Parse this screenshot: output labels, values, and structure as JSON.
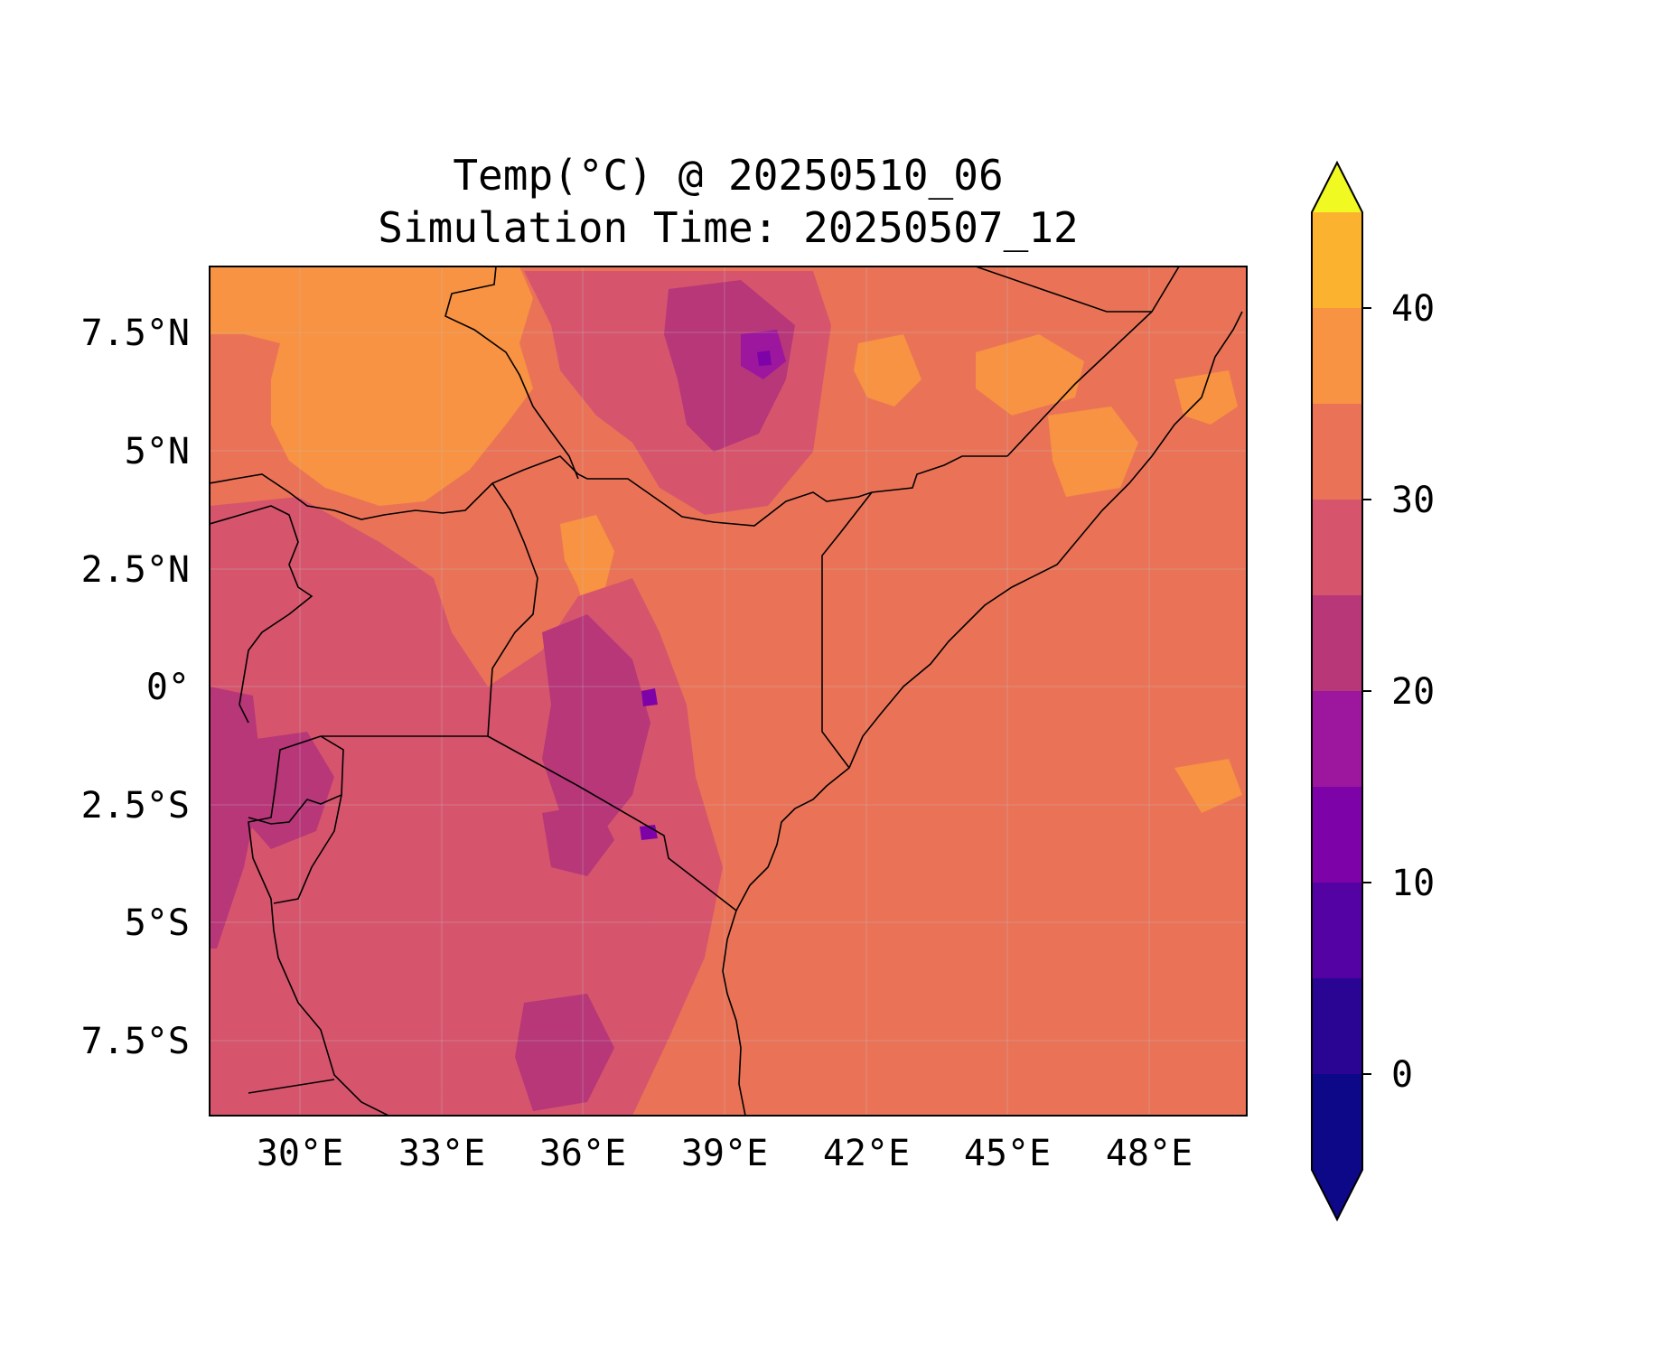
{
  "title_line1": "Temp(°C) @ 20250510_06",
  "title_line2": "Simulation Time: 20250507_12",
  "lon_ticks": [
    "30°E",
    "33°E",
    "36°E",
    "39°E",
    "42°E",
    "45°E",
    "48°E"
  ],
  "lat_ticks": [
    "7.5°N",
    "5°N",
    "2.5°N",
    "0°",
    "2.5°S",
    "5°S",
    "7.5°S"
  ],
  "colorbar": {
    "tick_labels": [
      "0",
      "10",
      "20",
      "30",
      "40"
    ],
    "levels": [
      -5,
      0,
      5,
      10,
      15,
      20,
      25,
      30,
      35,
      40,
      45
    ],
    "colors": [
      "#0d0887",
      "#2a0593",
      "#5402a3",
      "#7d03a8",
      "#9c179e",
      "#b73779",
      "#d6556d",
      "#ea7357",
      "#f79342",
      "#fbb32f",
      "#f0f921"
    ],
    "extend": "both"
  },
  "chart_data": {
    "type": "heatmap",
    "title": "Temp(°C) @ 20250510_06\nSimulation Time: 20250507_12",
    "xlim": [
      28,
      50
    ],
    "ylim": [
      -9,
      9
    ],
    "x_ticks": [
      30,
      33,
      36,
      39,
      42,
      45,
      48
    ],
    "y_ticks": [
      7.5,
      5,
      2.5,
      0,
      -2.5,
      -5,
      -7.5
    ],
    "colorbar_range": [
      -5,
      45
    ],
    "colorbar_ticks": [
      0,
      10,
      20,
      30,
      40
    ],
    "dominant_value_ranges": {
      "ocean_and_east": [
        25,
        30
      ],
      "north_west_lowland": [
        30,
        35
      ],
      "highlands": [
        10,
        25
      ]
    },
    "grid": true
  }
}
